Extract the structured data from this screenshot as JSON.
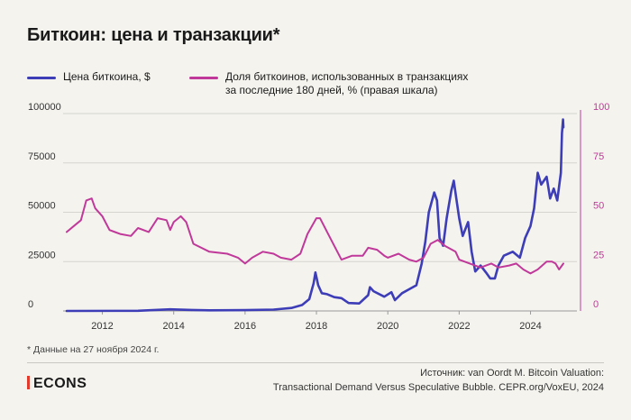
{
  "title": "Биткоин: цена и транзакции*",
  "legend": [
    {
      "label_lines": [
        "Цена биткоина, $"
      ],
      "color": "#3d3db8"
    },
    {
      "label_lines": [
        "Доля биткоинов, использованных в транзакциях",
        "за последние 180 дней, % (правая шкала)"
      ],
      "color": "#c0399a"
    }
  ],
  "footnote": "* Данные на 27 ноября 2024 г.",
  "brand": "ECONS",
  "source": [
    "Источник: van Oordt M. Bitcoin Valuation:",
    "Transactional Demand Versus Speculative Bubble. CEPR.org/VoxEU, 2024"
  ],
  "chart_data": {
    "type": "line",
    "x_ticks": [
      2012,
      2014,
      2016,
      2018,
      2020,
      2022,
      2024
    ],
    "x_range": [
      2010.9,
      2025.3
    ],
    "left_axis": {
      "ticks": [
        0,
        25000,
        50000,
        75000,
        100000
      ],
      "tick_labels": [
        "0",
        "25000",
        "50000",
        "75000",
        "100000"
      ],
      "range": [
        0,
        100000
      ]
    },
    "right_axis": {
      "ticks": [
        0,
        25,
        50,
        75,
        100
      ],
      "tick_labels": [
        "0",
        "25",
        "50",
        "75",
        "100"
      ],
      "range": [
        0,
        100
      ],
      "color": "#c0399a"
    },
    "grid": "horizontal",
    "series": [
      {
        "name": "Цена биткоина, $",
        "axis": "left",
        "color": "#3d3db8",
        "points": [
          [
            2011.0,
            0
          ],
          [
            2013.0,
            100
          ],
          [
            2013.9,
            800
          ],
          [
            2014.5,
            500
          ],
          [
            2015.0,
            300
          ],
          [
            2016.0,
            400
          ],
          [
            2016.8,
            700
          ],
          [
            2017.3,
            1500
          ],
          [
            2017.6,
            3000
          ],
          [
            2017.8,
            6000
          ],
          [
            2017.92,
            14000
          ],
          [
            2017.97,
            19500
          ],
          [
            2018.05,
            13000
          ],
          [
            2018.15,
            9000
          ],
          [
            2018.3,
            8500
          ],
          [
            2018.5,
            7000
          ],
          [
            2018.7,
            6500
          ],
          [
            2018.9,
            4000
          ],
          [
            2019.2,
            3800
          ],
          [
            2019.45,
            8000
          ],
          [
            2019.5,
            12000
          ],
          [
            2019.6,
            10000
          ],
          [
            2019.9,
            7200
          ],
          [
            2020.1,
            9500
          ],
          [
            2020.2,
            5500
          ],
          [
            2020.4,
            9000
          ],
          [
            2020.6,
            11000
          ],
          [
            2020.8,
            13000
          ],
          [
            2020.95,
            24000
          ],
          [
            2021.05,
            35000
          ],
          [
            2021.15,
            50000
          ],
          [
            2021.3,
            60000
          ],
          [
            2021.38,
            56000
          ],
          [
            2021.45,
            37000
          ],
          [
            2021.55,
            33000
          ],
          [
            2021.65,
            47000
          ],
          [
            2021.78,
            61000
          ],
          [
            2021.85,
            66000
          ],
          [
            2021.92,
            57000
          ],
          [
            2022.0,
            47000
          ],
          [
            2022.1,
            38000
          ],
          [
            2022.25,
            45000
          ],
          [
            2022.35,
            30000
          ],
          [
            2022.45,
            20000
          ],
          [
            2022.6,
            23000
          ],
          [
            2022.75,
            19500
          ],
          [
            2022.87,
            16500
          ],
          [
            2023.0,
            16500
          ],
          [
            2023.1,
            23000
          ],
          [
            2023.25,
            28000
          ],
          [
            2023.5,
            30000
          ],
          [
            2023.7,
            27000
          ],
          [
            2023.85,
            37000
          ],
          [
            2024.0,
            43000
          ],
          [
            2024.1,
            52000
          ],
          [
            2024.2,
            70000
          ],
          [
            2024.3,
            64000
          ],
          [
            2024.45,
            68000
          ],
          [
            2024.55,
            57000
          ],
          [
            2024.65,
            62000
          ],
          [
            2024.75,
            56000
          ],
          [
            2024.85,
            70000
          ],
          [
            2024.88,
            90000
          ],
          [
            2024.91,
            97000
          ],
          [
            2024.92,
            93000
          ]
        ]
      },
      {
        "name": "Доля биткоинов, использованных в транзакциях за последние 180 дней, % (правая шкала)",
        "axis": "right",
        "color": "#c0399a",
        "points": [
          [
            2011.0,
            40
          ],
          [
            2011.2,
            43
          ],
          [
            2011.4,
            46
          ],
          [
            2011.55,
            56
          ],
          [
            2011.7,
            57
          ],
          [
            2011.8,
            52
          ],
          [
            2012.0,
            48
          ],
          [
            2012.2,
            41
          ],
          [
            2012.5,
            39
          ],
          [
            2012.8,
            38
          ],
          [
            2013.0,
            42
          ],
          [
            2013.3,
            40
          ],
          [
            2013.55,
            47
          ],
          [
            2013.8,
            46
          ],
          [
            2013.9,
            41
          ],
          [
            2014.0,
            45
          ],
          [
            2014.2,
            48
          ],
          [
            2014.35,
            45
          ],
          [
            2014.55,
            34
          ],
          [
            2015.0,
            30
          ],
          [
            2015.5,
            29
          ],
          [
            2015.8,
            27
          ],
          [
            2016.0,
            24
          ],
          [
            2016.2,
            27
          ],
          [
            2016.5,
            30
          ],
          [
            2016.8,
            29
          ],
          [
            2017.0,
            27
          ],
          [
            2017.3,
            26
          ],
          [
            2017.55,
            29
          ],
          [
            2017.75,
            39
          ],
          [
            2018.0,
            47
          ],
          [
            2018.1,
            47
          ],
          [
            2018.3,
            40
          ],
          [
            2018.5,
            33
          ],
          [
            2018.7,
            26
          ],
          [
            2019.0,
            28
          ],
          [
            2019.3,
            28
          ],
          [
            2019.45,
            32
          ],
          [
            2019.7,
            31
          ],
          [
            2019.9,
            28
          ],
          [
            2020.0,
            27
          ],
          [
            2020.3,
            29
          ],
          [
            2020.6,
            26
          ],
          [
            2020.8,
            25
          ],
          [
            2021.0,
            27
          ],
          [
            2021.2,
            34
          ],
          [
            2021.4,
            36
          ],
          [
            2021.6,
            33
          ],
          [
            2021.9,
            30
          ],
          [
            2022.0,
            26
          ],
          [
            2022.3,
            24
          ],
          [
            2022.6,
            22
          ],
          [
            2022.9,
            24
          ],
          [
            2023.1,
            22
          ],
          [
            2023.4,
            23
          ],
          [
            2023.6,
            24
          ],
          [
            2023.8,
            21
          ],
          [
            2024.0,
            19
          ],
          [
            2024.2,
            21
          ],
          [
            2024.45,
            25
          ],
          [
            2024.6,
            25
          ],
          [
            2024.7,
            24
          ],
          [
            2024.8,
            21
          ],
          [
            2024.88,
            23
          ],
          [
            2024.92,
            24
          ]
        ]
      }
    ]
  }
}
